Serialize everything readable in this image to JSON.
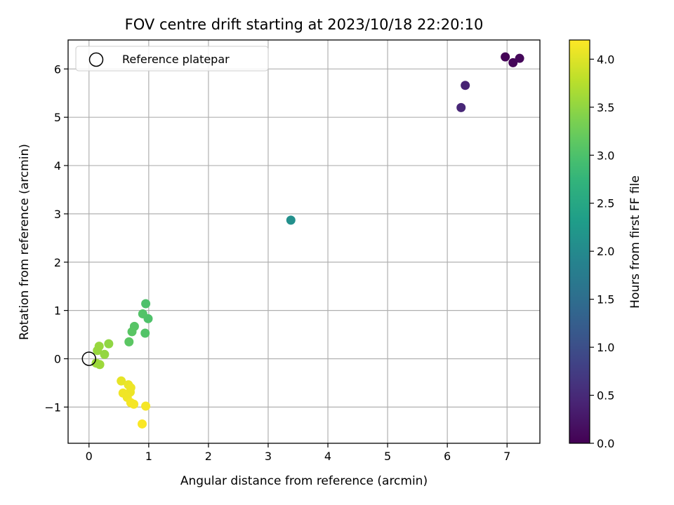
{
  "chart_data": {
    "type": "scatter",
    "title": "FOV centre drift starting at 2023/10/18 22:20:10",
    "xlabel": "Angular distance from reference (arcmin)",
    "ylabel": "Rotation from reference (arcmin)",
    "xlim": [
      -0.35,
      7.55
    ],
    "ylim": [
      -1.75,
      6.6
    ],
    "xticks": [
      0,
      1,
      2,
      3,
      4,
      5,
      6,
      7
    ],
    "yticks": [
      -1,
      0,
      1,
      2,
      3,
      4,
      5,
      6
    ],
    "xtick_labels": [
      "0",
      "1",
      "2",
      "3",
      "4",
      "5",
      "6",
      "7"
    ],
    "ytick_labels": [
      "−1",
      "0",
      "1",
      "2",
      "3",
      "4",
      "5",
      "6"
    ],
    "grid": true,
    "legend": {
      "placement": "top-left",
      "label": "Reference platepar"
    },
    "reference_point": {
      "x": 0,
      "y": 0
    },
    "colorbar": {
      "label": "Hours from first FF file",
      "range": [
        0.0,
        4.2
      ],
      "ticks": [
        0.0,
        0.5,
        1.0,
        1.5,
        2.0,
        2.5,
        3.0,
        3.5,
        4.0
      ],
      "tick_labels": [
        "0.0",
        "0.5",
        "1.0",
        "1.5",
        "2.0",
        "2.5",
        "3.0",
        "3.5",
        "4.0"
      ],
      "colormap": "viridis"
    },
    "series": [
      {
        "points": [
          {
            "x": 6.97,
            "y": 6.25,
            "hours": 0.02
          },
          {
            "x": 7.1,
            "y": 6.13,
            "hours": 0.05
          },
          {
            "x": 7.21,
            "y": 6.22,
            "hours": 0.08
          },
          {
            "x": 6.3,
            "y": 5.66,
            "hours": 0.4
          },
          {
            "x": 6.23,
            "y": 5.2,
            "hours": 0.45
          },
          {
            "x": 3.38,
            "y": 2.87,
            "hours": 2.1
          },
          {
            "x": 0.95,
            "y": 1.14,
            "hours": 3.0
          },
          {
            "x": 0.99,
            "y": 0.83,
            "hours": 3.02
          },
          {
            "x": 0.9,
            "y": 0.93,
            "hours": 3.05
          },
          {
            "x": 0.76,
            "y": 0.67,
            "hours": 3.08
          },
          {
            "x": 0.72,
            "y": 0.56,
            "hours": 3.1
          },
          {
            "x": 0.94,
            "y": 0.53,
            "hours": 3.05
          },
          {
            "x": 0.67,
            "y": 0.35,
            "hours": 3.12
          },
          {
            "x": 0.33,
            "y": 0.31,
            "hours": 3.5
          },
          {
            "x": 0.17,
            "y": 0.26,
            "hours": 3.55
          },
          {
            "x": 0.14,
            "y": 0.17,
            "hours": 3.55
          },
          {
            "x": 0.26,
            "y": 0.09,
            "hours": 3.52
          },
          {
            "x": 0.12,
            "y": -0.09,
            "hours": 3.58
          },
          {
            "x": 0.18,
            "y": -0.12,
            "hours": 3.58
          },
          {
            "x": 0.54,
            "y": -0.46,
            "hours": 4.05
          },
          {
            "x": 0.66,
            "y": -0.54,
            "hours": 4.08
          },
          {
            "x": 0.7,
            "y": -0.6,
            "hours": 4.1
          },
          {
            "x": 0.69,
            "y": -0.69,
            "hours": 4.1
          },
          {
            "x": 0.57,
            "y": -0.71,
            "hours": 4.12
          },
          {
            "x": 0.64,
            "y": -0.8,
            "hours": 4.12
          },
          {
            "x": 0.7,
            "y": -0.91,
            "hours": 4.14
          },
          {
            "x": 0.75,
            "y": -0.94,
            "hours": 4.15
          },
          {
            "x": 0.95,
            "y": -0.98,
            "hours": 4.15
          },
          {
            "x": 0.89,
            "y": -1.35,
            "hours": 4.18
          }
        ]
      }
    ]
  }
}
